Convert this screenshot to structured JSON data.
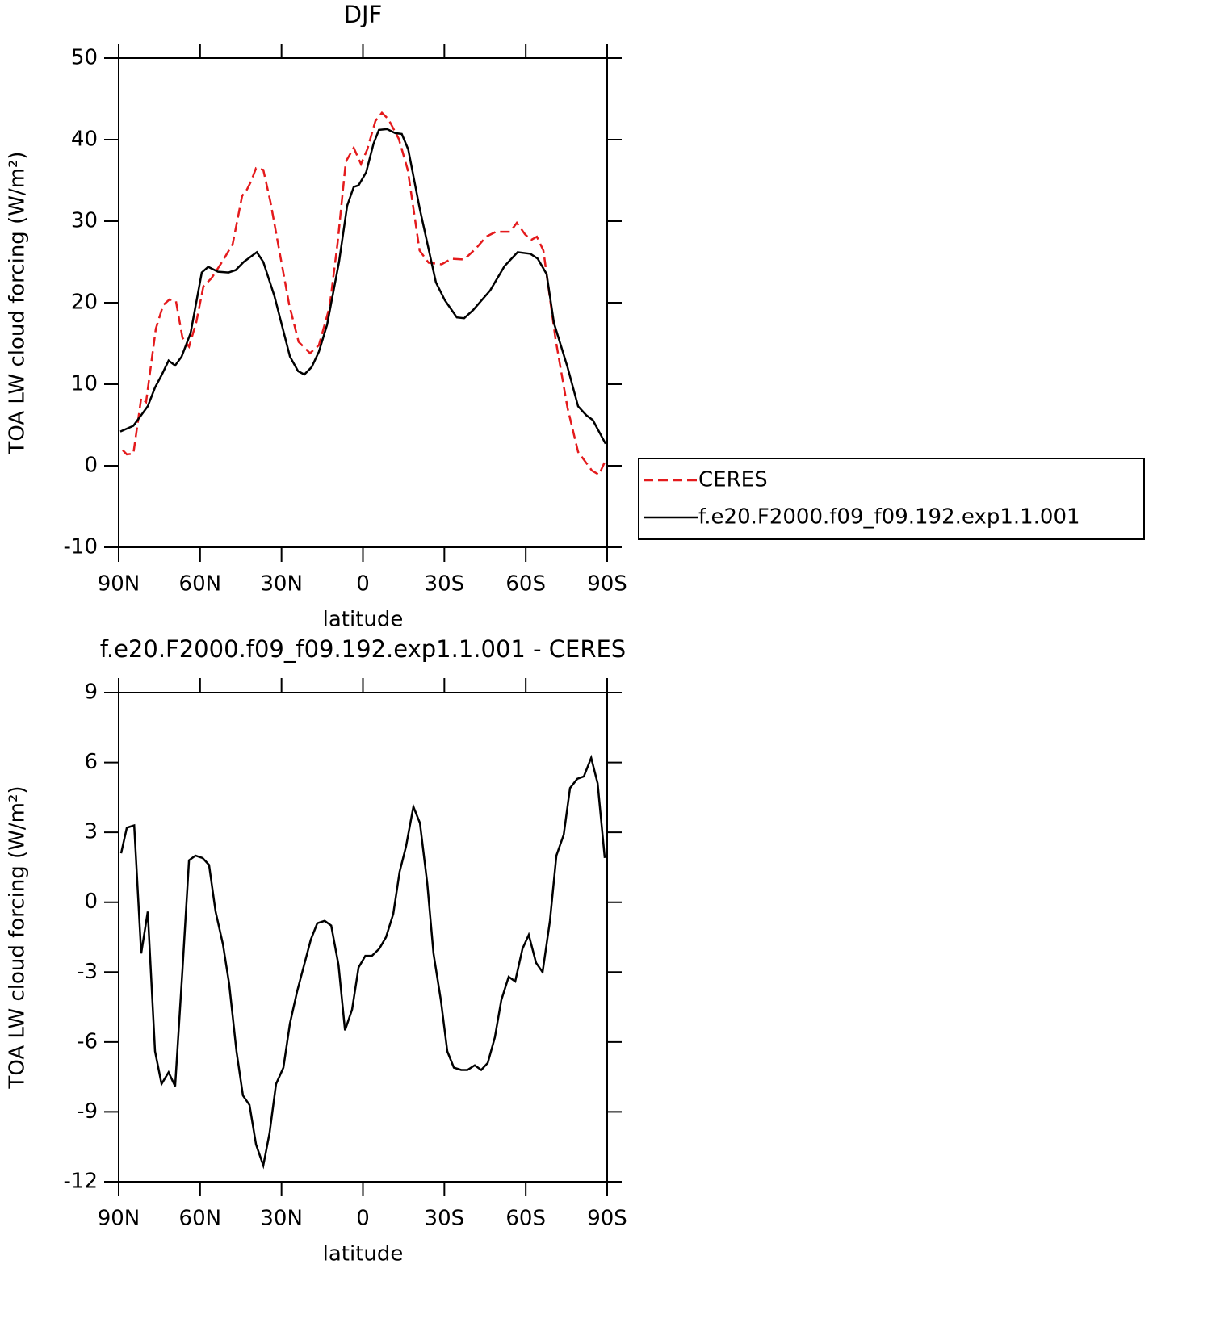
{
  "chart_data": [
    {
      "type": "line",
      "title": "DJF",
      "xlabel": "latitude",
      "ylabel": "TOA LW cloud forcing (W/m²)",
      "xlim": [
        90,
        -90
      ],
      "xticks": [
        {
          "value": 90,
          "label": "90N"
        },
        {
          "value": 60,
          "label": "60N"
        },
        {
          "value": 30,
          "label": "30N"
        },
        0,
        {
          "value": -30,
          "label": "30S"
        },
        {
          "value": -60,
          "label": "60S"
        },
        {
          "value": -90,
          "label": "90S"
        }
      ],
      "ylim": [
        -10,
        50
      ],
      "yticks": [
        -10,
        0,
        10,
        20,
        30,
        40,
        50
      ],
      "legend": "right",
      "series": [
        {
          "name": "CERES",
          "color": "#e41a1c",
          "dash": "dashed",
          "x": [
            88.5,
            87.0,
            84.6,
            81.7,
            79.9,
            76.3,
            73.6,
            71.3,
            68.9,
            66.5,
            64.1,
            61.4,
            58.8,
            55.8,
            51.9,
            48.0,
            44.5,
            42.7,
            41.2,
            39.4,
            36.7,
            34.1,
            31.1,
            27.2,
            23.7,
            19.5,
            16.2,
            12.3,
            9.3,
            6.3,
            3.4,
            0.7,
            -1.6,
            -4.6,
            -7.0,
            -9.4,
            -13.2,
            -16.5,
            -20.9,
            -24.2,
            -29.0,
            -32.6,
            -37.3,
            -41.8,
            -45.4,
            -49.0,
            -54.3,
            -56.7,
            -59.7,
            -62.0,
            -64.1,
            -66.5,
            -71.0,
            -75.4,
            -79.3,
            -84.4,
            -87.0,
            -89.7
          ],
          "values": [
            1.9,
            1.4,
            1.5,
            8.3,
            7.8,
            16.8,
            19.7,
            20.4,
            20.2,
            15.7,
            14.6,
            17.6,
            22.0,
            23.0,
            25.0,
            27.2,
            33.1,
            33.9,
            34.9,
            36.5,
            36.3,
            32.4,
            26.9,
            19.8,
            15.2,
            13.8,
            14.8,
            19.5,
            27.4,
            37.3,
            39.0,
            37.0,
            38.8,
            42.3,
            43.3,
            42.5,
            40.1,
            36.3,
            26.4,
            24.9,
            24.7,
            25.4,
            25.3,
            26.7,
            28.1,
            28.7,
            28.7,
            29.8,
            28.4,
            27.7,
            28.1,
            26.4,
            15.5,
            7.1,
            1.7,
            -0.6,
            -1.1,
            0.9
          ]
        },
        {
          "name": "f.e20.F2000.f09_f09.192.exp1.1.001",
          "color": "#000000",
          "dash": "solid",
          "x": [
            89.4,
            84.6,
            79.3,
            76.6,
            74.2,
            71.6,
            69.2,
            66.8,
            63.5,
            59.4,
            57.0,
            53.4,
            49.5,
            46.9,
            43.9,
            39.1,
            36.7,
            32.6,
            26.9,
            23.9,
            21.6,
            18.9,
            16.2,
            13.2,
            8.8,
            5.8,
            3.4,
            1.6,
            -1.2,
            -3.9,
            -5.9,
            -8.9,
            -11.9,
            -14.3,
            -16.7,
            -20.9,
            -26.9,
            -30.2,
            -34.6,
            -37.3,
            -40.6,
            -46.9,
            -52.2,
            -57.0,
            -61.7,
            -64.4,
            -67.7,
            -70.4,
            -75.4,
            -79.3,
            -82.3,
            -84.7,
            -89.4
          ],
          "values": [
            4.2,
            4.9,
            7.3,
            9.6,
            11.1,
            12.9,
            12.3,
            13.4,
            16.3,
            23.7,
            24.4,
            23.8,
            23.7,
            24.0,
            25.0,
            26.2,
            25.0,
            20.8,
            13.4,
            11.6,
            11.2,
            12.1,
            14.0,
            17.3,
            25.0,
            31.9,
            34.2,
            34.4,
            36.0,
            39.5,
            41.2,
            41.3,
            40.8,
            40.7,
            38.8,
            31.6,
            22.5,
            20.3,
            18.2,
            18.1,
            19.1,
            21.5,
            24.5,
            26.2,
            26.0,
            25.4,
            23.5,
            17.5,
            12.1,
            7.3,
            6.2,
            5.6,
            2.7
          ]
        }
      ]
    },
    {
      "type": "line",
      "title": "f.e20.F2000.f09_f09.192.exp1.1.001 - CERES",
      "xlabel": "latitude",
      "ylabel": "TOA LW cloud forcing (W/m²)",
      "xlim": [
        90,
        -90
      ],
      "xticks": [
        {
          "value": 90,
          "label": "90N"
        },
        {
          "value": 60,
          "label": "60N"
        },
        {
          "value": 30,
          "label": "30N"
        },
        0,
        {
          "value": -30,
          "label": "30S"
        },
        {
          "value": -60,
          "label": "60S"
        },
        {
          "value": -90,
          "label": "90S"
        }
      ],
      "ylim": [
        -12,
        9
      ],
      "yticks": [
        -12,
        -9,
        -6,
        -3,
        0,
        3,
        6,
        9
      ],
      "series": [
        {
          "color": "#000000",
          "dash": "solid",
          "x": [
            89.1,
            87.0,
            84.3,
            81.7,
            79.3,
            76.6,
            74.2,
            71.6,
            69.2,
            66.5,
            64.1,
            61.7,
            59.1,
            56.7,
            54.3,
            51.6,
            49.3,
            46.6,
            44.2,
            41.8,
            39.4,
            36.7,
            34.4,
            32.0,
            29.3,
            26.9,
            24.2,
            19.2,
            16.8,
            14.1,
            11.7,
            9.0,
            6.6,
            4.0,
            1.6,
            -0.9,
            -3.3,
            -6.0,
            -8.5,
            -11.2,
            -13.5,
            -15.9,
            -18.6,
            -21.0,
            -23.7,
            -26.0,
            -28.7,
            -31.1,
            -33.5,
            -36.2,
            -38.5,
            -41.2,
            -43.6,
            -46.0,
            -48.6,
            -51.0,
            -53.7,
            -56.1,
            -58.8,
            -61.1,
            -63.8,
            -66.2,
            -68.9,
            -71.3,
            -74.0,
            -76.3,
            -79.0,
            -81.4,
            -84.1,
            -86.5,
            -89.1
          ],
          "values": [
            2.1,
            3.2,
            3.3,
            -2.2,
            -0.4,
            -6.4,
            -7.8,
            -7.3,
            -7.9,
            -2.9,
            1.8,
            2.0,
            1.9,
            1.6,
            -0.4,
            -1.8,
            -3.5,
            -6.4,
            -8.3,
            -8.7,
            -10.4,
            -11.3,
            -9.9,
            -7.8,
            -7.1,
            -5.2,
            -3.8,
            -1.6,
            -0.9,
            -0.8,
            -1.0,
            -2.7,
            -5.5,
            -4.6,
            -2.8,
            -2.3,
            -2.3,
            -2.0,
            -1.5,
            -0.5,
            1.3,
            2.4,
            4.1,
            3.4,
            0.8,
            -2.2,
            -4.2,
            -6.4,
            -7.1,
            -7.2,
            -7.2,
            -7.0,
            -7.2,
            -6.9,
            -5.8,
            -4.2,
            -3.2,
            -3.4,
            -2.0,
            -1.4,
            -2.6,
            -3.0,
            -0.8,
            2.0,
            2.9,
            4.9,
            5.3,
            5.4,
            6.2,
            5.1,
            1.9
          ]
        }
      ]
    }
  ]
}
